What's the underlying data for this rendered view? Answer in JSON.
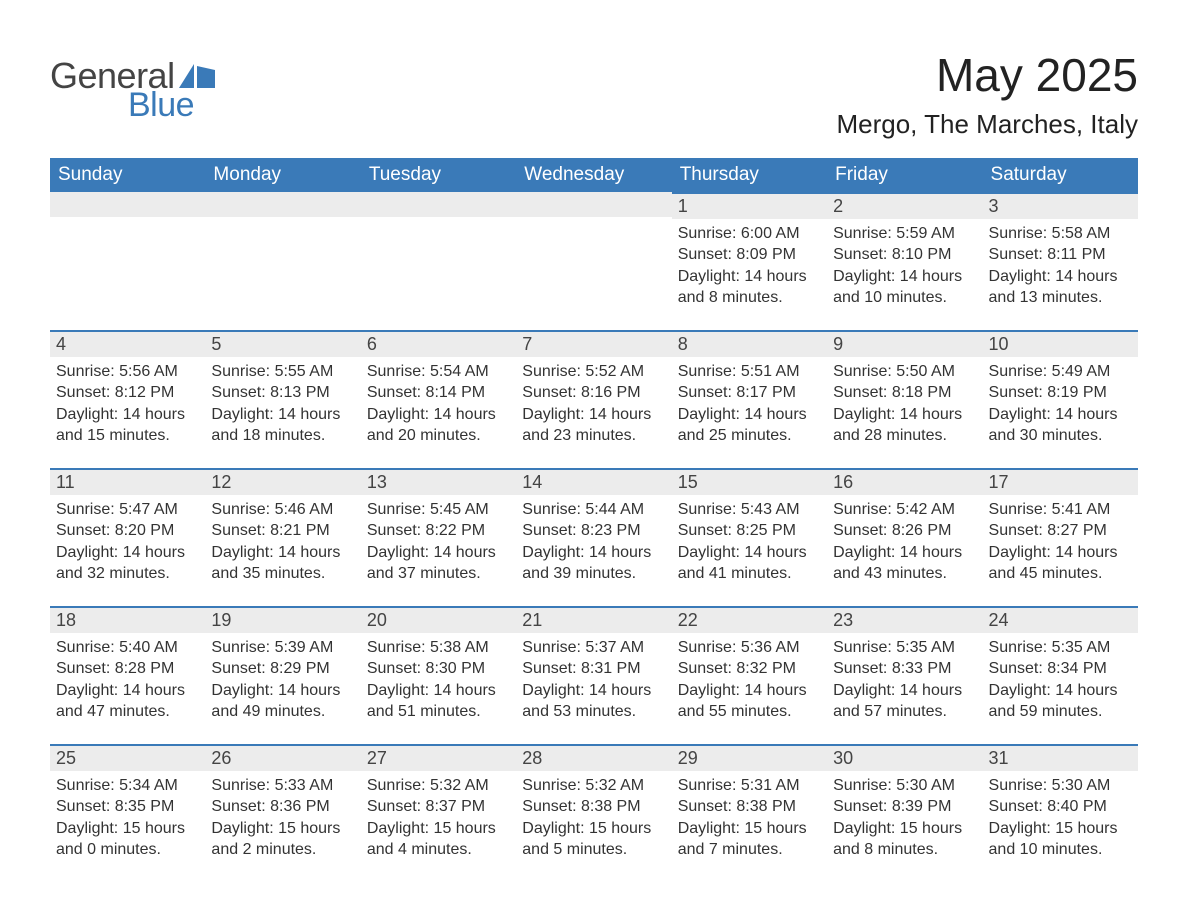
{
  "brand": {
    "general": "General",
    "blue": "Blue"
  },
  "header": {
    "month_title": "May 2025",
    "location": "Mergo, The Marches, Italy"
  },
  "colors": {
    "accent": "#3a7ab8",
    "header_bg": "#3a7ab8",
    "header_text": "#ffffff",
    "daynum_bg": "#ececec",
    "text": "#333333",
    "page_bg": "#ffffff"
  },
  "calendar": {
    "type": "table",
    "columns": [
      "Sunday",
      "Monday",
      "Tuesday",
      "Wednesday",
      "Thursday",
      "Friday",
      "Saturday"
    ],
    "weeks": [
      [
        {
          "blank": true
        },
        {
          "blank": true
        },
        {
          "blank": true
        },
        {
          "blank": true
        },
        {
          "day": "1",
          "sunrise": "Sunrise: 6:00 AM",
          "sunset": "Sunset: 8:09 PM",
          "daylight": "Daylight: 14 hours and 8 minutes."
        },
        {
          "day": "2",
          "sunrise": "Sunrise: 5:59 AM",
          "sunset": "Sunset: 8:10 PM",
          "daylight": "Daylight: 14 hours and 10 minutes."
        },
        {
          "day": "3",
          "sunrise": "Sunrise: 5:58 AM",
          "sunset": "Sunset: 8:11 PM",
          "daylight": "Daylight: 14 hours and 13 minutes."
        }
      ],
      [
        {
          "day": "4",
          "sunrise": "Sunrise: 5:56 AM",
          "sunset": "Sunset: 8:12 PM",
          "daylight": "Daylight: 14 hours and 15 minutes."
        },
        {
          "day": "5",
          "sunrise": "Sunrise: 5:55 AM",
          "sunset": "Sunset: 8:13 PM",
          "daylight": "Daylight: 14 hours and 18 minutes."
        },
        {
          "day": "6",
          "sunrise": "Sunrise: 5:54 AM",
          "sunset": "Sunset: 8:14 PM",
          "daylight": "Daylight: 14 hours and 20 minutes."
        },
        {
          "day": "7",
          "sunrise": "Sunrise: 5:52 AM",
          "sunset": "Sunset: 8:16 PM",
          "daylight": "Daylight: 14 hours and 23 minutes."
        },
        {
          "day": "8",
          "sunrise": "Sunrise: 5:51 AM",
          "sunset": "Sunset: 8:17 PM",
          "daylight": "Daylight: 14 hours and 25 minutes."
        },
        {
          "day": "9",
          "sunrise": "Sunrise: 5:50 AM",
          "sunset": "Sunset: 8:18 PM",
          "daylight": "Daylight: 14 hours and 28 minutes."
        },
        {
          "day": "10",
          "sunrise": "Sunrise: 5:49 AM",
          "sunset": "Sunset: 8:19 PM",
          "daylight": "Daylight: 14 hours and 30 minutes."
        }
      ],
      [
        {
          "day": "11",
          "sunrise": "Sunrise: 5:47 AM",
          "sunset": "Sunset: 8:20 PM",
          "daylight": "Daylight: 14 hours and 32 minutes."
        },
        {
          "day": "12",
          "sunrise": "Sunrise: 5:46 AM",
          "sunset": "Sunset: 8:21 PM",
          "daylight": "Daylight: 14 hours and 35 minutes."
        },
        {
          "day": "13",
          "sunrise": "Sunrise: 5:45 AM",
          "sunset": "Sunset: 8:22 PM",
          "daylight": "Daylight: 14 hours and 37 minutes."
        },
        {
          "day": "14",
          "sunrise": "Sunrise: 5:44 AM",
          "sunset": "Sunset: 8:23 PM",
          "daylight": "Daylight: 14 hours and 39 minutes."
        },
        {
          "day": "15",
          "sunrise": "Sunrise: 5:43 AM",
          "sunset": "Sunset: 8:25 PM",
          "daylight": "Daylight: 14 hours and 41 minutes."
        },
        {
          "day": "16",
          "sunrise": "Sunrise: 5:42 AM",
          "sunset": "Sunset: 8:26 PM",
          "daylight": "Daylight: 14 hours and 43 minutes."
        },
        {
          "day": "17",
          "sunrise": "Sunrise: 5:41 AM",
          "sunset": "Sunset: 8:27 PM",
          "daylight": "Daylight: 14 hours and 45 minutes."
        }
      ],
      [
        {
          "day": "18",
          "sunrise": "Sunrise: 5:40 AM",
          "sunset": "Sunset: 8:28 PM",
          "daylight": "Daylight: 14 hours and 47 minutes."
        },
        {
          "day": "19",
          "sunrise": "Sunrise: 5:39 AM",
          "sunset": "Sunset: 8:29 PM",
          "daylight": "Daylight: 14 hours and 49 minutes."
        },
        {
          "day": "20",
          "sunrise": "Sunrise: 5:38 AM",
          "sunset": "Sunset: 8:30 PM",
          "daylight": "Daylight: 14 hours and 51 minutes."
        },
        {
          "day": "21",
          "sunrise": "Sunrise: 5:37 AM",
          "sunset": "Sunset: 8:31 PM",
          "daylight": "Daylight: 14 hours and 53 minutes."
        },
        {
          "day": "22",
          "sunrise": "Sunrise: 5:36 AM",
          "sunset": "Sunset: 8:32 PM",
          "daylight": "Daylight: 14 hours and 55 minutes."
        },
        {
          "day": "23",
          "sunrise": "Sunrise: 5:35 AM",
          "sunset": "Sunset: 8:33 PM",
          "daylight": "Daylight: 14 hours and 57 minutes."
        },
        {
          "day": "24",
          "sunrise": "Sunrise: 5:35 AM",
          "sunset": "Sunset: 8:34 PM",
          "daylight": "Daylight: 14 hours and 59 minutes."
        }
      ],
      [
        {
          "day": "25",
          "sunrise": "Sunrise: 5:34 AM",
          "sunset": "Sunset: 8:35 PM",
          "daylight": "Daylight: 15 hours and 0 minutes."
        },
        {
          "day": "26",
          "sunrise": "Sunrise: 5:33 AM",
          "sunset": "Sunset: 8:36 PM",
          "daylight": "Daylight: 15 hours and 2 minutes."
        },
        {
          "day": "27",
          "sunrise": "Sunrise: 5:32 AM",
          "sunset": "Sunset: 8:37 PM",
          "daylight": "Daylight: 15 hours and 4 minutes."
        },
        {
          "day": "28",
          "sunrise": "Sunrise: 5:32 AM",
          "sunset": "Sunset: 8:38 PM",
          "daylight": "Daylight: 15 hours and 5 minutes."
        },
        {
          "day": "29",
          "sunrise": "Sunrise: 5:31 AM",
          "sunset": "Sunset: 8:38 PM",
          "daylight": "Daylight: 15 hours and 7 minutes."
        },
        {
          "day": "30",
          "sunrise": "Sunrise: 5:30 AM",
          "sunset": "Sunset: 8:39 PM",
          "daylight": "Daylight: 15 hours and 8 minutes."
        },
        {
          "day": "31",
          "sunrise": "Sunrise: 5:30 AM",
          "sunset": "Sunset: 8:40 PM",
          "daylight": "Daylight: 15 hours and 10 minutes."
        }
      ]
    ]
  }
}
